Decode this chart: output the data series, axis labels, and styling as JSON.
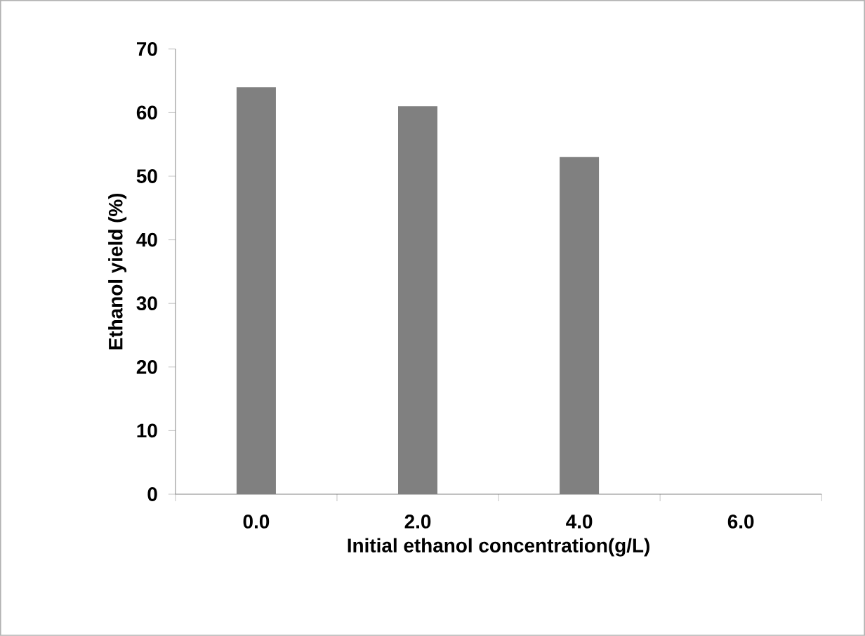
{
  "chart_data": {
    "type": "bar",
    "xlabel": "Initial ethanol concentration(g/L)",
    "ylabel": "Ethanol yield (%)",
    "categories": [
      "0.0",
      "2.0",
      "4.0",
      "6.0"
    ],
    "values": [
      64,
      61,
      53,
      null
    ],
    "color": "#808080",
    "ylim": [
      0,
      70
    ],
    "yticks": [
      0,
      10,
      20,
      30,
      40,
      50,
      60,
      70
    ]
  }
}
